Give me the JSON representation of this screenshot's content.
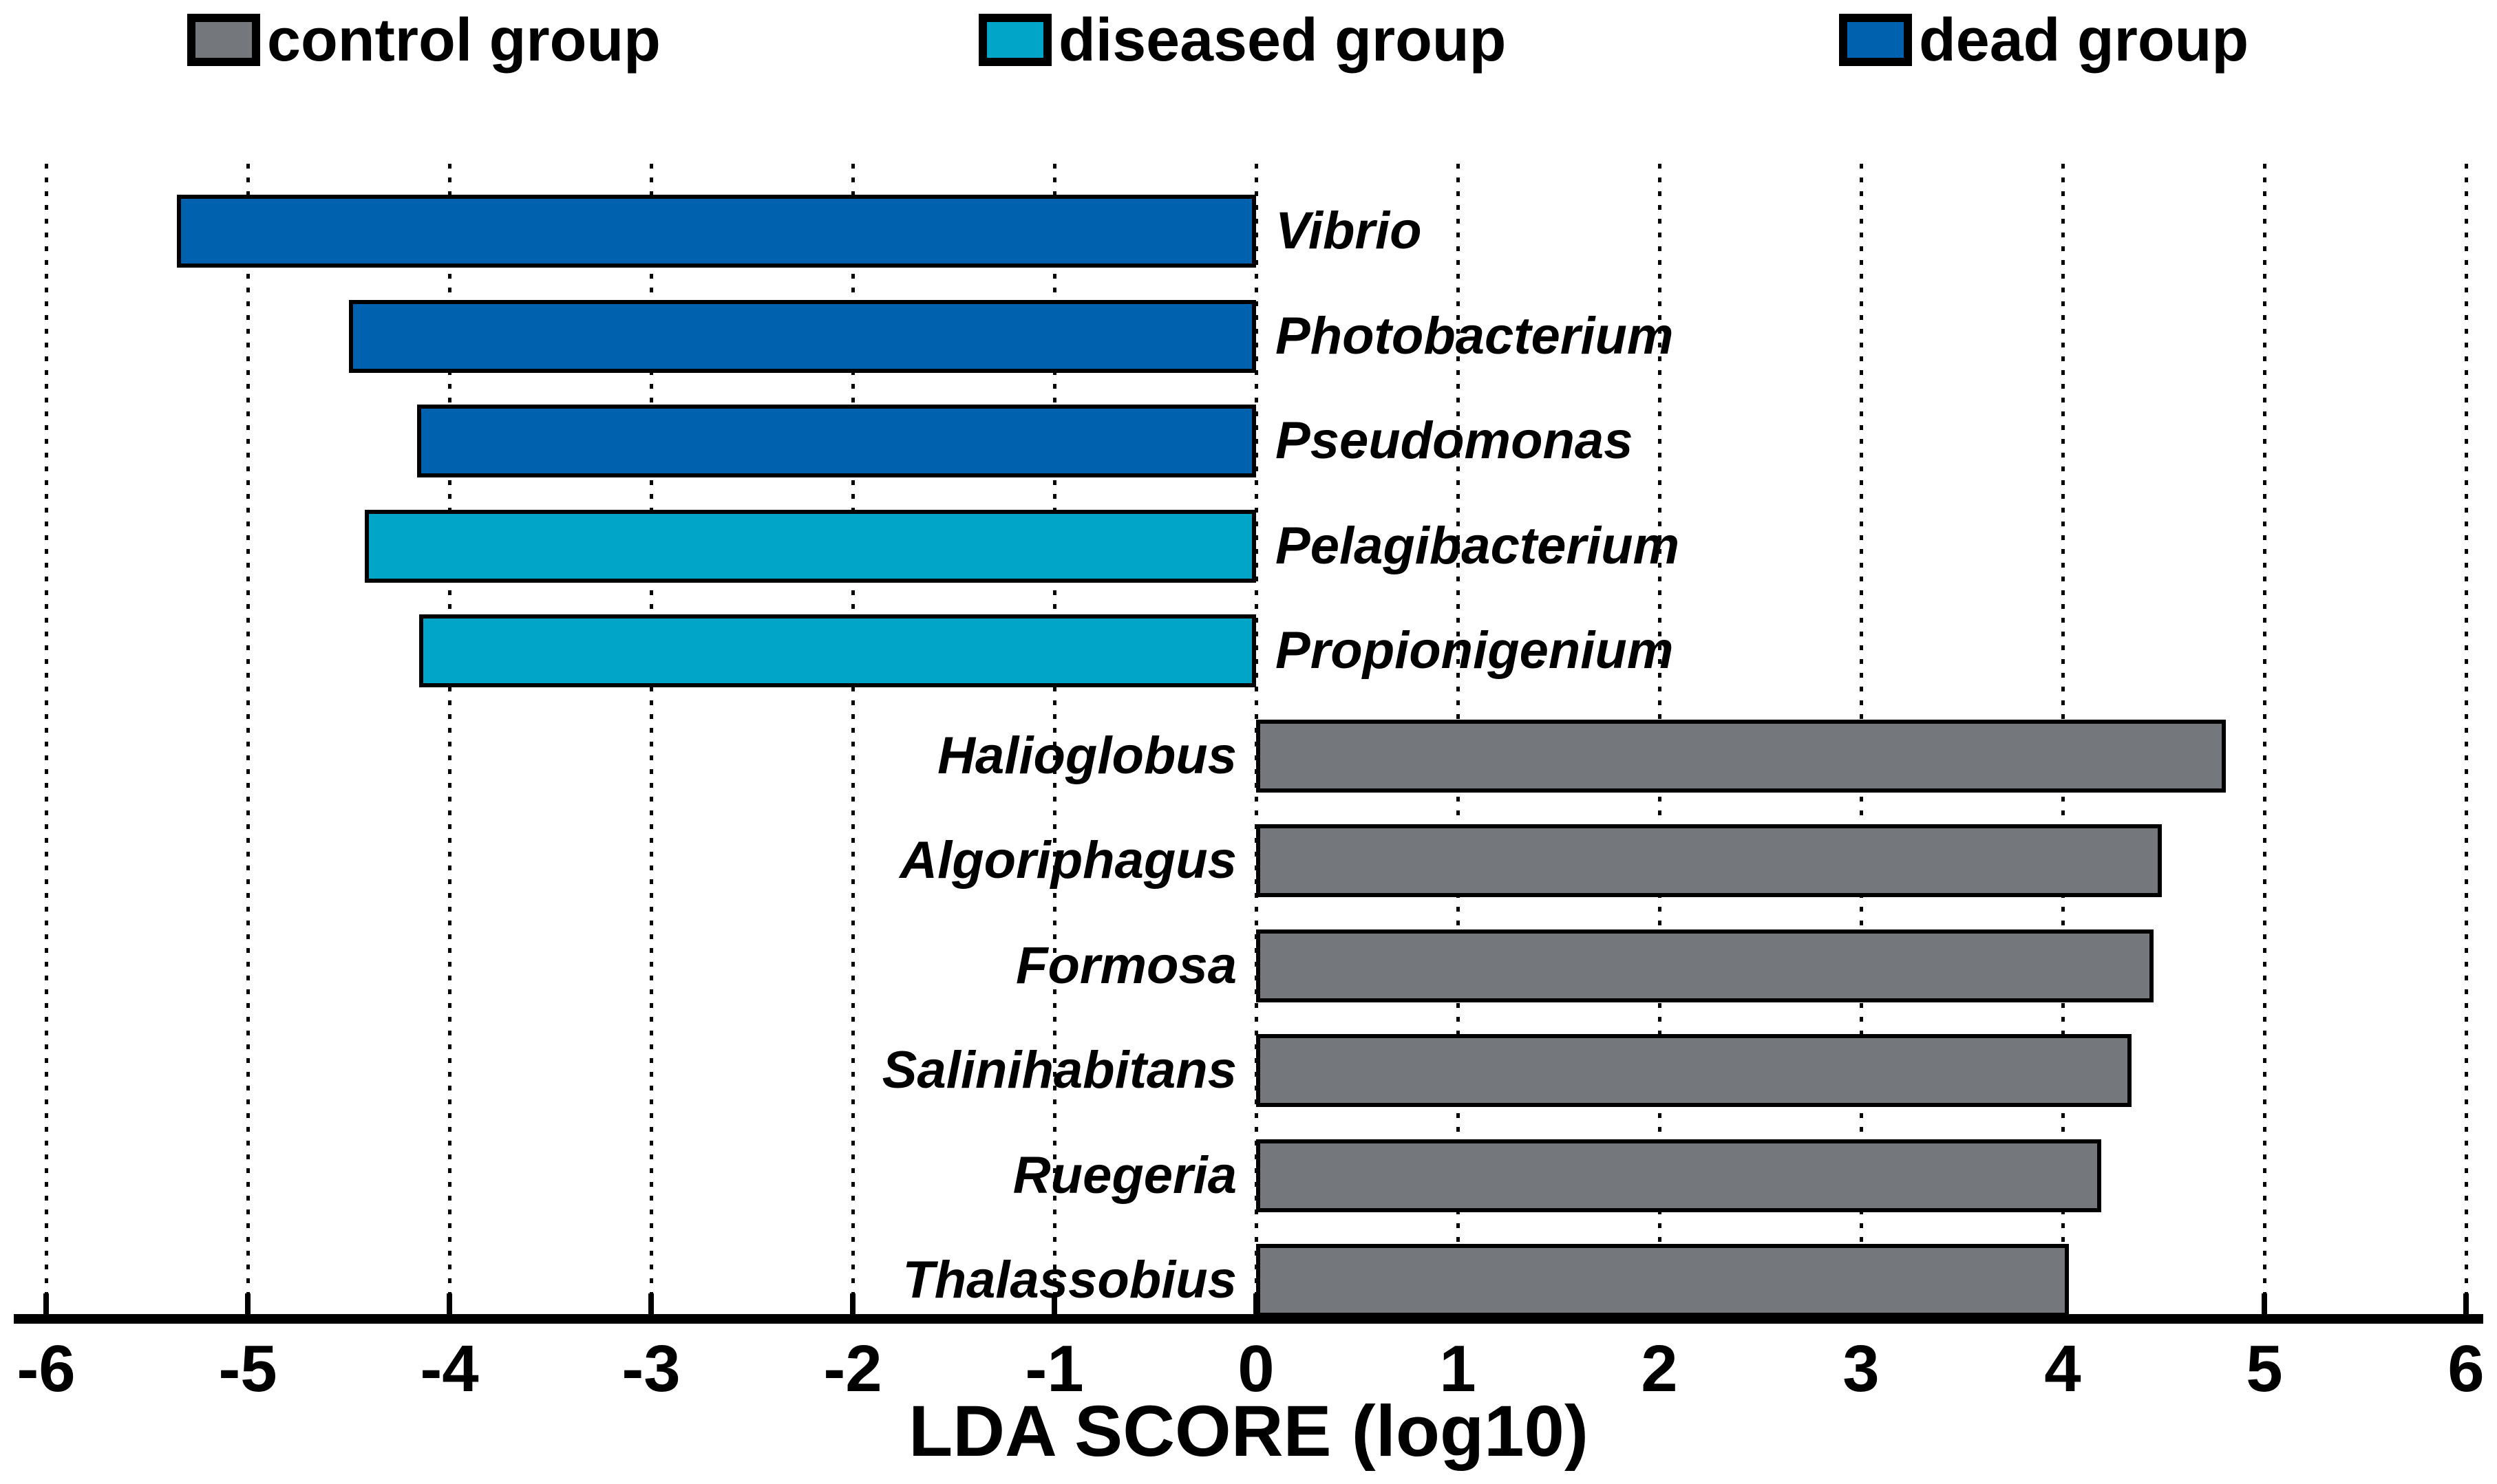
{
  "legend": {
    "position": "top",
    "items": [
      {
        "label": "control group",
        "color": "#74787c"
      },
      {
        "label": "diseased group",
        "color": "#00a5c8"
      },
      {
        "label": "dead group",
        "color": "#0061af"
      }
    ]
  },
  "chart_data": {
    "type": "bar",
    "orientation": "horizontal",
    "xlabel": "LDA SCORE (log10)",
    "xlim": [
      -6,
      6
    ],
    "xticks": [
      -6,
      -5,
      -4,
      -3,
      -2,
      -1,
      0,
      1,
      2,
      3,
      4,
      5,
      6
    ],
    "xtick_labels": [
      "-6",
      "-5",
      "-4",
      "-3",
      "-2",
      "-1",
      "0",
      "1",
      "2",
      "3",
      "4",
      "5",
      "6"
    ],
    "grid": "dotted-vertical-per-unit",
    "group_colors": {
      "control group": "#74787c",
      "diseased group": "#00a5c8",
      "dead group": "#0061af"
    },
    "bars": [
      {
        "taxon": "Vibrio",
        "group": "dead group",
        "value": -5.35
      },
      {
        "taxon": "Photobacterium",
        "group": "dead group",
        "value": -4.5
      },
      {
        "taxon": "Pseudomonas",
        "group": "dead group",
        "value": -4.16
      },
      {
        "taxon": "Pelagibacterium",
        "group": "diseased group",
        "value": -4.42
      },
      {
        "taxon": "Propionigenium",
        "group": "diseased group",
        "value": -4.15
      },
      {
        "taxon": "Halioglobus",
        "group": "control group",
        "value": 4.81
      },
      {
        "taxon": "Algoriphagus",
        "group": "control group",
        "value": 4.49
      },
      {
        "taxon": "Formosa",
        "group": "control group",
        "value": 4.45
      },
      {
        "taxon": "Salinihabitans",
        "group": "control group",
        "value": 4.34
      },
      {
        "taxon": "Ruegeria",
        "group": "control group",
        "value": 4.19
      },
      {
        "taxon": "Thalassobius",
        "group": "control group",
        "value": 4.03
      }
    ]
  }
}
